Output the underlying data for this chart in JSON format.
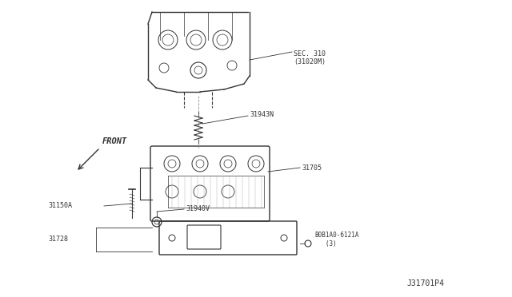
{
  "title": "",
  "background_color": "#ffffff",
  "fig_width": 6.4,
  "fig_height": 3.72,
  "dpi": 100,
  "labels": {
    "sec310": "SEC. 310\n(31020M)",
    "part_31943N": "31943N",
    "part_31705": "31705",
    "part_31150A": "31150A",
    "part_31940V": "31940V",
    "part_31728": "31728",
    "part_bolt": "B0B1A0-6121A\n   (3)",
    "front": "FRONT",
    "diagram_id": "J31701P4"
  },
  "colors": {
    "line": "#333333",
    "text": "#333333",
    "background": "#ffffff",
    "part_line": "#555555"
  },
  "font_sizes": {
    "label": 6.5,
    "small": 6.0,
    "diagram_id": 7.0,
    "front": 7.5
  }
}
